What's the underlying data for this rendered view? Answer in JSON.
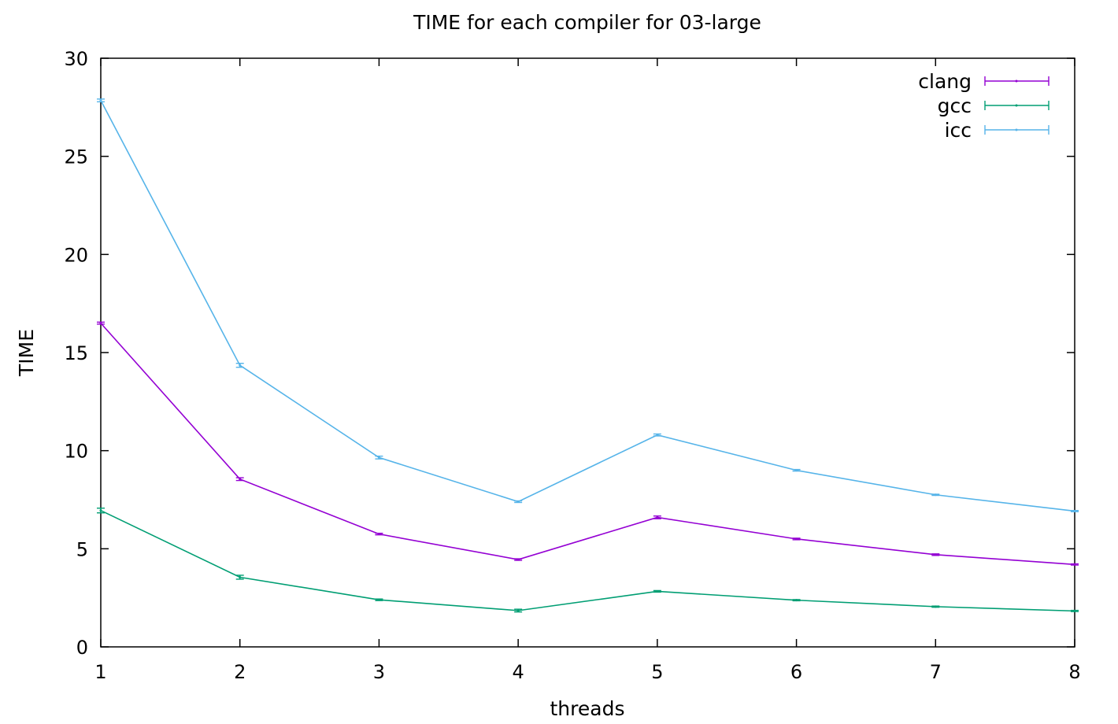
{
  "chart_data": {
    "type": "line",
    "title": "TIME for each compiler for 03-large",
    "xlabel": "threads",
    "ylabel": "TIME",
    "x": [
      1,
      2,
      3,
      4,
      5,
      6,
      7,
      8
    ],
    "xlim": [
      1,
      8
    ],
    "ylim": [
      0,
      30
    ],
    "xticks": [
      "1",
      "2",
      "3",
      "4",
      "5",
      "6",
      "7",
      "8"
    ],
    "yticks": [
      "0",
      "5",
      "10",
      "15",
      "20",
      "25",
      "30"
    ],
    "grid": false,
    "legend_position": "top-right",
    "error_bars": true,
    "series": [
      {
        "name": "clang",
        "color": "#9400d3",
        "values": [
          16.5,
          8.55,
          5.75,
          4.45,
          6.6,
          5.5,
          4.7,
          4.2
        ],
        "errors": [
          0.05,
          0.07,
          0.04,
          0.04,
          0.07,
          0.04,
          0.04,
          0.03
        ]
      },
      {
        "name": "gcc",
        "color": "#009e73",
        "values": [
          6.95,
          3.55,
          2.4,
          1.85,
          2.83,
          2.38,
          2.05,
          1.83
        ],
        "errors": [
          0.12,
          0.1,
          0.04,
          0.07,
          0.04,
          0.03,
          0.03,
          0.03
        ]
      },
      {
        "name": "icc",
        "color": "#56b4e9",
        "values": [
          27.85,
          14.35,
          9.65,
          7.4,
          10.8,
          9.0,
          7.75,
          6.92
        ],
        "errors": [
          0.07,
          0.1,
          0.07,
          0.04,
          0.05,
          0.04,
          0.03,
          0.03
        ]
      }
    ]
  }
}
